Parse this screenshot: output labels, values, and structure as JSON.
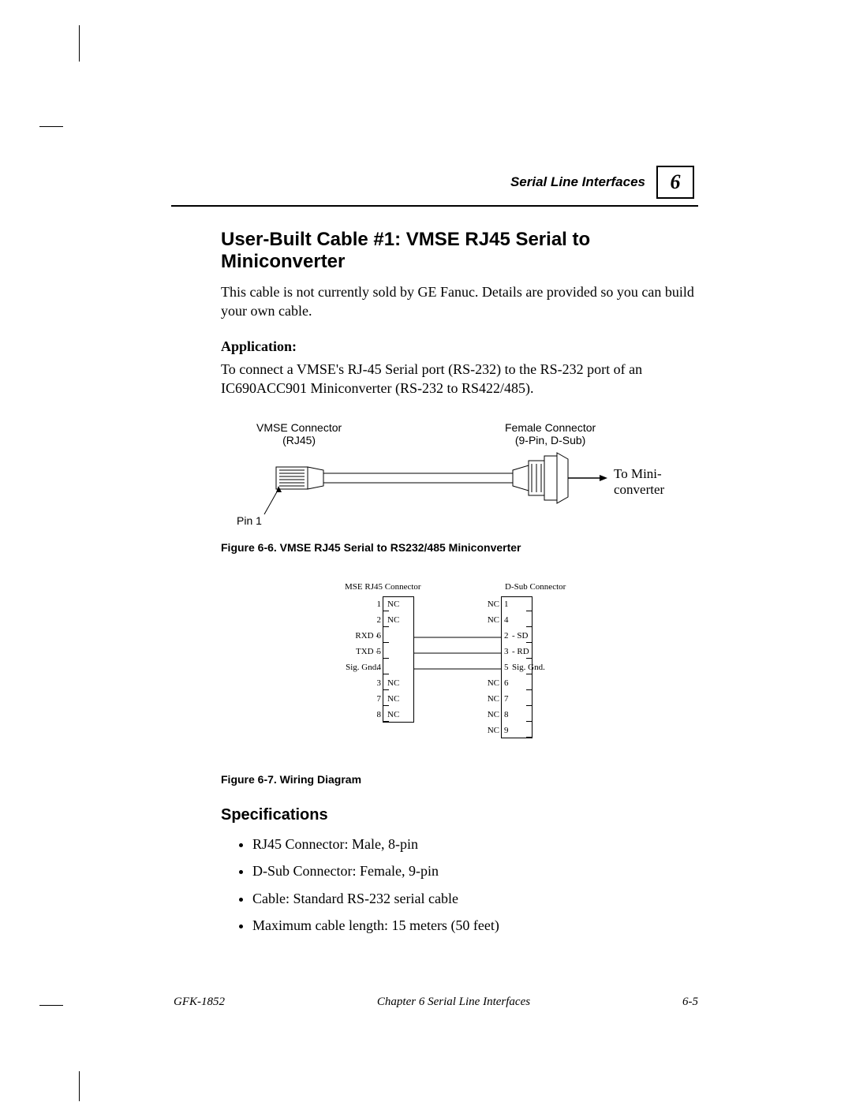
{
  "header": {
    "chapter_label": "Serial Line Interfaces",
    "chapter_number": "6"
  },
  "section_title": "User-Built Cable #1:  VMSE RJ45 Serial to Miniconverter",
  "intro_paragraph": "This cable is not currently sold by GE Fanuc.  Details are provided so you can build your own cable.",
  "application": {
    "label": "Application:",
    "text": "To connect a VMSE's RJ-45 Serial port (RS-232) to the RS-232 port of an IC690ACC901 Miniconverter (RS-232 to RS422/485)."
  },
  "cable_diagram": {
    "vmse_connector_l1": "VMSE Connector",
    "vmse_connector_l2": "(RJ45)",
    "female_connector_l1": "Female Connector",
    "female_connector_l2": "(9-Pin, D-Sub)",
    "pin1_label": "Pin 1",
    "to_mini_l1": "To Mini-",
    "to_mini_l2": "converter",
    "caption": "Figure 6-6.  VMSE RJ45 Serial to RS232/485 Miniconverter"
  },
  "wiring_diagram": {
    "left_title": "MSE RJ45 Connector",
    "right_title": "D-Sub Connector",
    "left_rows": [
      {
        "pin": "1",
        "label": "NC",
        "prefix": ""
      },
      {
        "pin": "2",
        "label": "NC",
        "prefix": ""
      },
      {
        "pin": "6",
        "label": "",
        "prefix": "RXD -"
      },
      {
        "pin": "5",
        "label": "",
        "prefix": "TXD -"
      },
      {
        "pin": "4",
        "label": "",
        "prefix": "Sig. Gnd."
      },
      {
        "pin": "3",
        "label": "NC",
        "prefix": ""
      },
      {
        "pin": "7",
        "label": "NC",
        "prefix": ""
      },
      {
        "pin": "8",
        "label": "NC",
        "prefix": ""
      }
    ],
    "right_rows": [
      {
        "pin": "1",
        "label": "NC",
        "suffix": ""
      },
      {
        "pin": "4",
        "label": "NC",
        "suffix": ""
      },
      {
        "pin": "2",
        "label": "",
        "suffix": "- SD"
      },
      {
        "pin": "3",
        "label": "",
        "suffix": "- RD"
      },
      {
        "pin": "5",
        "label": "",
        "suffix": "Sig. Gnd."
      },
      {
        "pin": "6",
        "label": "NC",
        "suffix": ""
      },
      {
        "pin": "7",
        "label": "NC",
        "suffix": ""
      },
      {
        "pin": "8",
        "label": "NC",
        "suffix": ""
      },
      {
        "pin": "9",
        "label": "NC",
        "suffix": ""
      }
    ],
    "caption": "Figure 6-7.  Wiring Diagram"
  },
  "specifications": {
    "heading": "Specifications",
    "items": [
      "RJ45 Connector:  Male, 8-pin",
      "D-Sub Connector:  Female, 9-pin",
      "Cable:  Standard RS-232 serial cable",
      "Maximum cable length:  15 meters (50 feet)"
    ]
  },
  "footer": {
    "left": "GFK-1852",
    "mid": "Chapter 6  Serial Line Interfaces",
    "right": "6-5"
  },
  "colors": {
    "text": "#000000",
    "background": "#ffffff"
  }
}
